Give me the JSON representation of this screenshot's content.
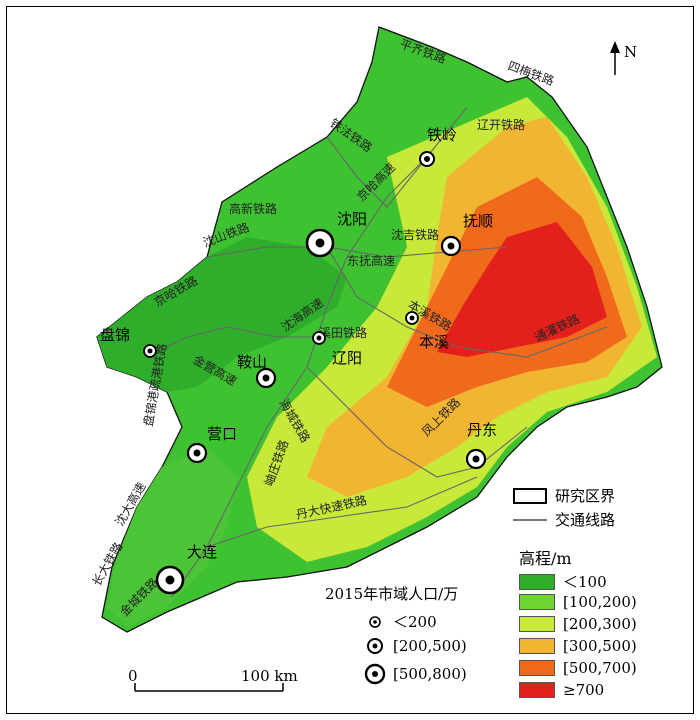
{
  "north": "N",
  "cities": {
    "tieling": "铁岭",
    "shenyang": "沈阳",
    "fushun": "抚顺",
    "panjin": "盘锦",
    "anshan": "鞍山",
    "liaoyang": "辽阳",
    "benxi": "本溪",
    "yingkou": "营口",
    "dandong": "丹东",
    "dalian": "大连"
  },
  "routes": {
    "pingqi": "平齐铁路",
    "simei": "四梅铁路",
    "liaokai": "辽开铁路",
    "tiefa": "铁法铁路",
    "jiha": "京哈高速",
    "gaoxin": "高新铁路",
    "shenshan": "沈山铁路",
    "shenji": "沈吉铁路",
    "dongfu": "东抚高速",
    "jingha2": "京哈铁路",
    "shenhai": "沈海高速",
    "xixi": "溪田铁路",
    "tongguan": "通灌铁路",
    "benxi_rail": "本溪铁路",
    "jinying": "金营高速",
    "panjin_rail": "盘锦港疏港铁路",
    "haicheng": "海城铁路",
    "xiuyan": "岫庄铁路",
    "fengshang": "凤上铁路",
    "danda": "丹大快速铁路",
    "jinzhou": "金城铁路",
    "shenda": "沈大高速",
    "changda": "长大铁路"
  },
  "legend": {
    "boundary": "研究区界",
    "traffic": "交通线路",
    "elev_title": "高程/m",
    "elev_classes": [
      {
        "label": "＜100",
        "color": "#2fae2c"
      },
      {
        "label": "[100,200)",
        "color": "#6fd42e"
      },
      {
        "label": "[200,300)",
        "color": "#c8e83a"
      },
      {
        "label": "[300,500)",
        "color": "#f2b531"
      },
      {
        "label": "[500,700)",
        "color": "#f06a1c"
      },
      {
        "label": "≥700",
        "color": "#e3201b"
      }
    ],
    "pop_title": "2015年市域人口/万",
    "pop_classes": [
      "＜200",
      "[200,500)",
      "[500,800)"
    ]
  },
  "scale": {
    "zero": "0",
    "end": "100 km"
  }
}
